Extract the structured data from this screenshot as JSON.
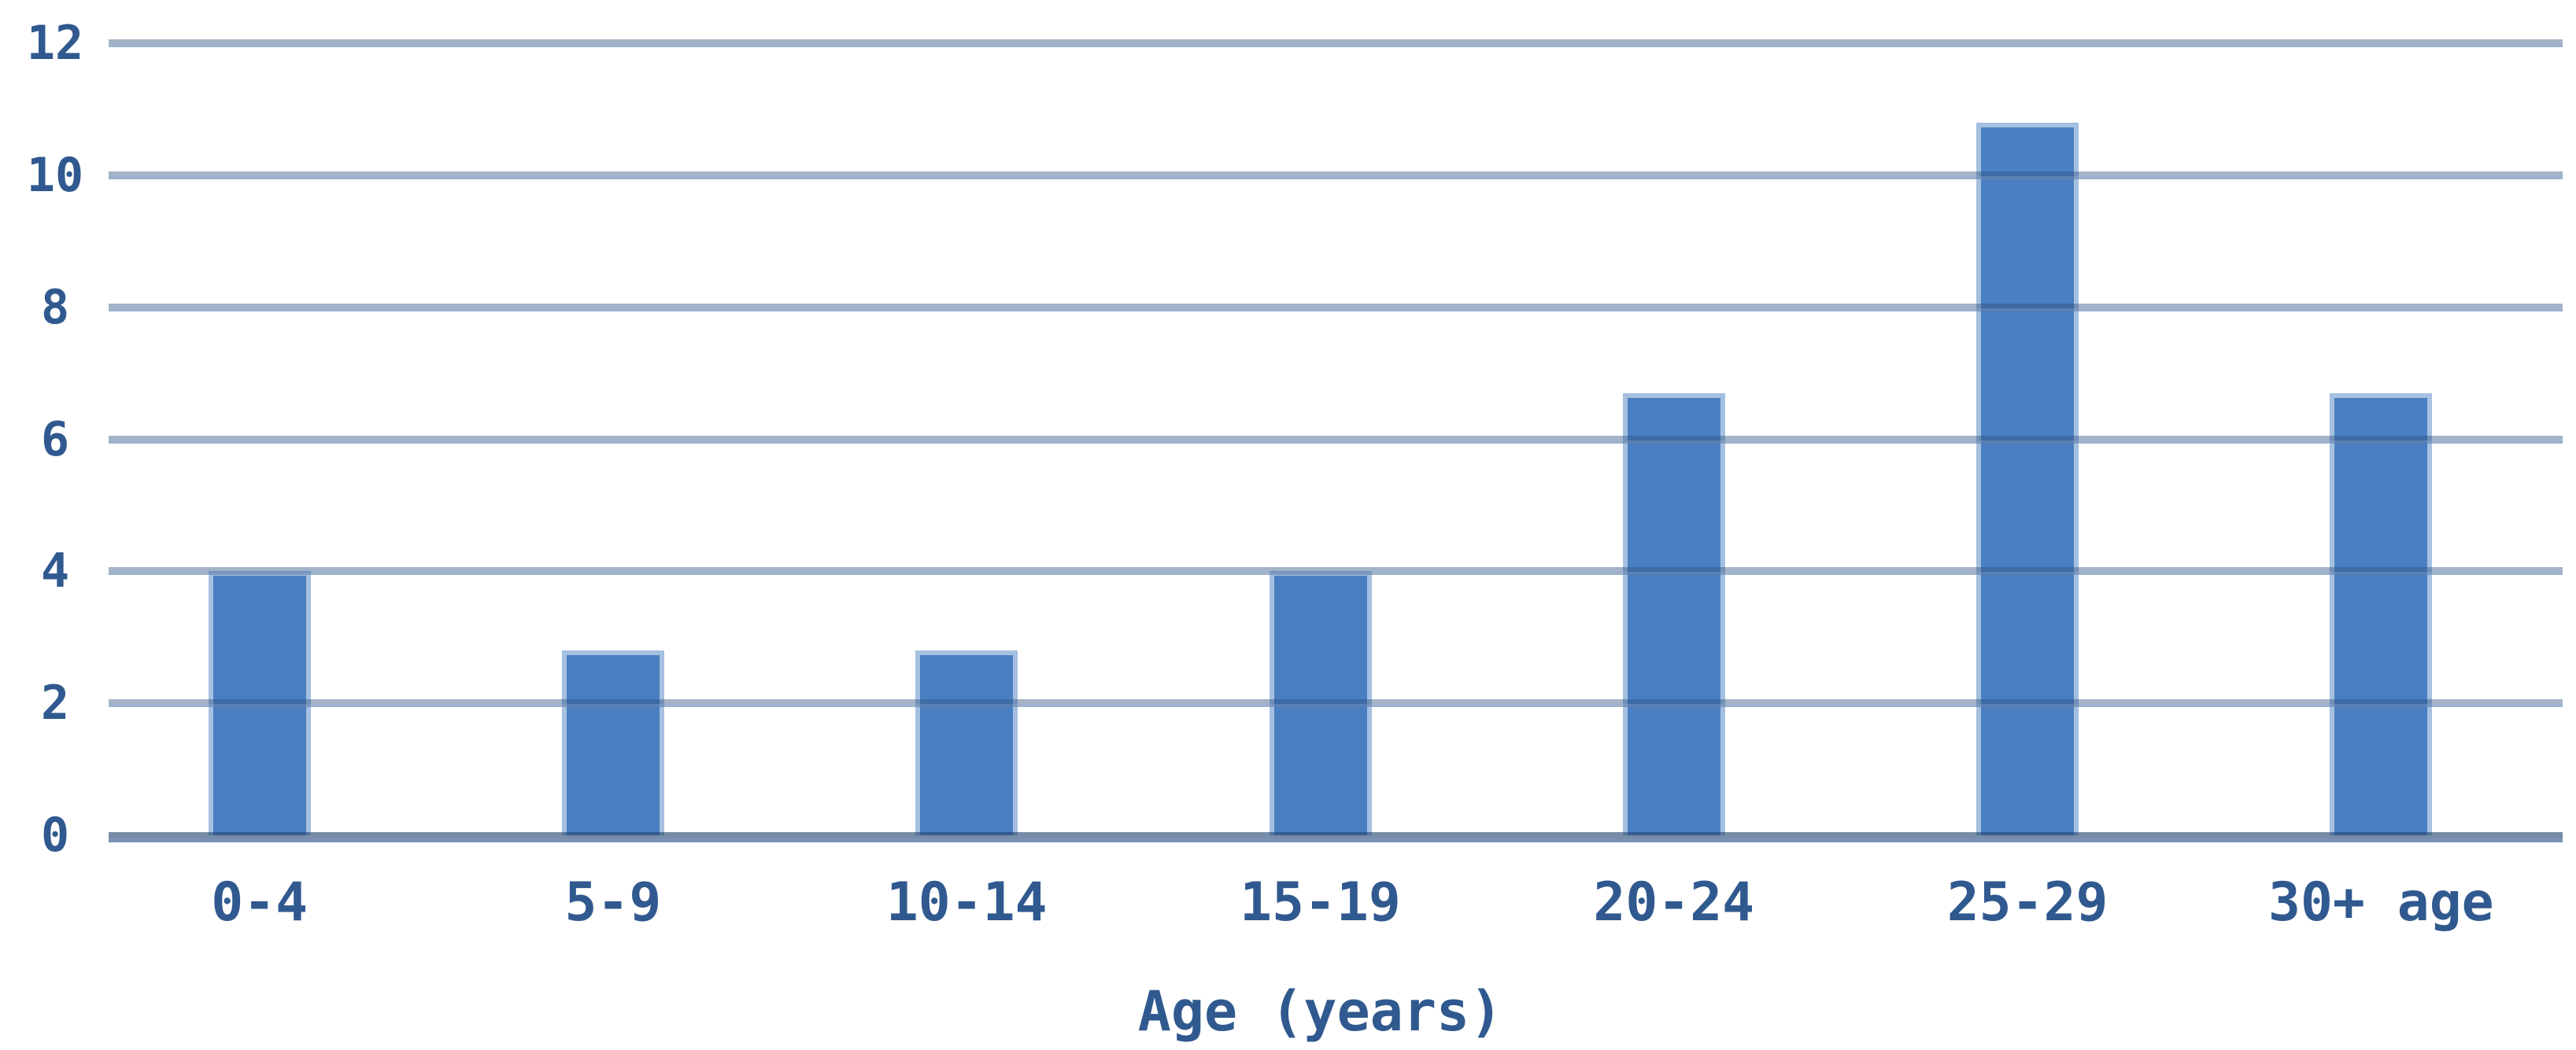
{
  "chart_data": {
    "type": "bar",
    "title": "",
    "categories": [
      "0-4",
      "5-9",
      "10-14",
      "15-19",
      "20-24",
      "25-29",
      "30+ age"
    ],
    "values": [
      4,
      2.8,
      2.8,
      4,
      6.7,
      10.8,
      6.7
    ],
    "xlabel": "Age (years)",
    "ylabel": "",
    "ylim": [
      0,
      12
    ],
    "ytick_step": 2,
    "ytick_labels": [
      "0",
      "2",
      "4",
      "6",
      "8",
      "10",
      "12"
    ],
    "grid": "horizontal-only",
    "legend": "none",
    "colors": {
      "bar_fill": "#4a7fc1",
      "bar_edge": "#aac4e2",
      "grid_line": "#92acce",
      "axis_line": "#40689a",
      "text": "#30598f",
      "background": "#ffffff"
    }
  }
}
